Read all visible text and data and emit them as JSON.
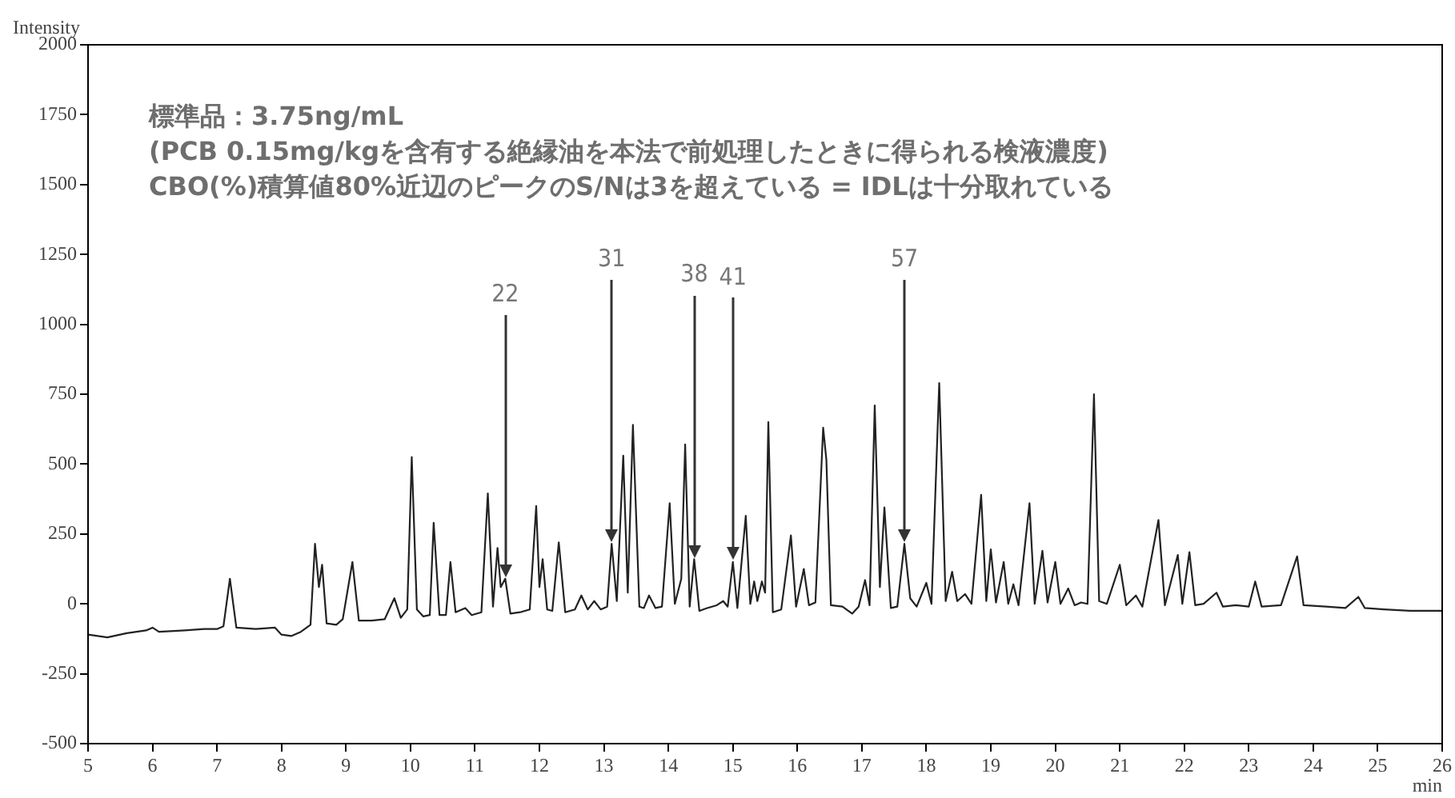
{
  "chart_data": {
    "type": "line",
    "xlabel": "min",
    "ylabel": "Intensity",
    "xlim": [
      5,
      26
    ],
    "xticks": [
      5,
      6,
      7,
      8,
      9,
      10,
      11,
      12,
      13,
      14,
      15,
      16,
      17,
      18,
      19,
      20,
      21,
      22,
      23,
      24,
      25,
      26
    ],
    "ylim": [
      -500,
      2000
    ],
    "yticks": [
      -500,
      -250,
      0,
      250,
      500,
      750,
      1000,
      1250,
      1500,
      1750,
      2000
    ],
    "grid": false,
    "legend": false,
    "marker": "none",
    "line_style": "solid",
    "series": [
      {
        "color": "#222222",
        "x": [
          5.0,
          5.3,
          5.6,
          5.9,
          6.0,
          6.1,
          6.5,
          6.8,
          7.0,
          7.1,
          7.2,
          7.3,
          7.6,
          7.9,
          8.0,
          8.15,
          8.3,
          8.45,
          8.52,
          8.58,
          8.63,
          8.7,
          8.85,
          8.95,
          9.1,
          9.2,
          9.4,
          9.6,
          9.75,
          9.85,
          9.95,
          10.02,
          10.1,
          10.2,
          10.3,
          10.36,
          10.45,
          10.55,
          10.62,
          10.7,
          10.85,
          10.95,
          11.1,
          11.2,
          11.28,
          11.35,
          11.4,
          11.47,
          11.55,
          11.7,
          11.85,
          11.95,
          12.0,
          12.05,
          12.12,
          12.2,
          12.3,
          12.4,
          12.55,
          12.65,
          12.75,
          12.85,
          12.95,
          13.05,
          13.12,
          13.2,
          13.3,
          13.37,
          13.45,
          13.55,
          13.62,
          13.7,
          13.8,
          13.9,
          14.02,
          14.1,
          14.2,
          14.26,
          14.33,
          14.4,
          14.48,
          14.6,
          14.75,
          14.85,
          14.92,
          15.0,
          15.07,
          15.2,
          15.27,
          15.33,
          15.38,
          15.45,
          15.5,
          15.55,
          15.62,
          15.75,
          15.9,
          15.98,
          16.1,
          16.18,
          16.28,
          16.4,
          16.45,
          16.52,
          16.7,
          16.85,
          16.95,
          17.05,
          17.12,
          17.2,
          17.28,
          17.35,
          17.45,
          17.55,
          17.66,
          17.75,
          17.85,
          18.0,
          18.08,
          18.2,
          18.3,
          18.4,
          18.48,
          18.6,
          18.7,
          18.85,
          18.93,
          19.0,
          19.08,
          19.2,
          19.27,
          19.35,
          19.43,
          19.6,
          19.68,
          19.8,
          19.88,
          20.0,
          20.08,
          20.2,
          20.3,
          20.4,
          20.5,
          20.6,
          20.68,
          20.8,
          21.0,
          21.1,
          21.25,
          21.35,
          21.6,
          21.7,
          21.9,
          21.97,
          22.08,
          22.17,
          22.3,
          22.5,
          22.6,
          22.8,
          23.0,
          23.1,
          23.2,
          23.5,
          23.75,
          23.85,
          24.2,
          24.5,
          24.7,
          24.8,
          25.1,
          25.5,
          26.0
        ],
        "values": [
          -110,
          -120,
          -105,
          -95,
          -85,
          -100,
          -95,
          -90,
          -90,
          -80,
          90,
          -85,
          -90,
          -85,
          -110,
          -115,
          -100,
          -75,
          215,
          60,
          140,
          -70,
          -75,
          -55,
          150,
          -60,
          -60,
          -55,
          20,
          -50,
          -20,
          525,
          -20,
          -45,
          -40,
          290,
          -40,
          -40,
          150,
          -30,
          -15,
          -40,
          -30,
          395,
          -10,
          200,
          60,
          90,
          -35,
          -30,
          -20,
          350,
          60,
          160,
          -20,
          -25,
          220,
          -30,
          -20,
          30,
          -20,
          10,
          -20,
          -10,
          215,
          10,
          530,
          40,
          640,
          -10,
          -15,
          30,
          -15,
          -10,
          360,
          0,
          90,
          570,
          -10,
          160,
          -25,
          -15,
          -5,
          10,
          -10,
          150,
          -15,
          315,
          0,
          80,
          10,
          80,
          40,
          650,
          -30,
          -20,
          245,
          -10,
          125,
          -5,
          5,
          630,
          515,
          -5,
          -10,
          -35,
          -10,
          85,
          -5,
          710,
          60,
          345,
          -15,
          -10,
          215,
          20,
          -10,
          75,
          0,
          790,
          10,
          115,
          10,
          35,
          0,
          390,
          10,
          195,
          5,
          150,
          0,
          70,
          -5,
          360,
          0,
          190,
          5,
          150,
          0,
          55,
          -5,
          5,
          0,
          750,
          10,
          0,
          140,
          -5,
          30,
          -10,
          300,
          -5,
          175,
          0,
          185,
          -5,
          0,
          40,
          -10,
          -5,
          -10,
          80,
          -10,
          -5,
          170,
          -5,
          -10,
          -15,
          25,
          -15,
          -20,
          -25,
          -25
        ]
      }
    ],
    "annotations": [
      "標準品：3.75ng/mL",
      "(PCB 0.15mg/kgを含有する絶縁油を本法で前処理したときに得られる検液濃度)",
      "CBO(%)積算値80%近辺のピークのS/Nは3を超えている = IDLは十分取れている",
      {
        "text": "22",
        "x": 11.47,
        "y": 90
      },
      {
        "text": "31",
        "x": 13.12,
        "y": 215
      },
      {
        "text": "38",
        "x": 14.4,
        "y": 160
      },
      {
        "text": "41",
        "x": 15.0,
        "y": 150
      },
      {
        "text": "57",
        "x": 17.66,
        "y": 215
      }
    ]
  }
}
